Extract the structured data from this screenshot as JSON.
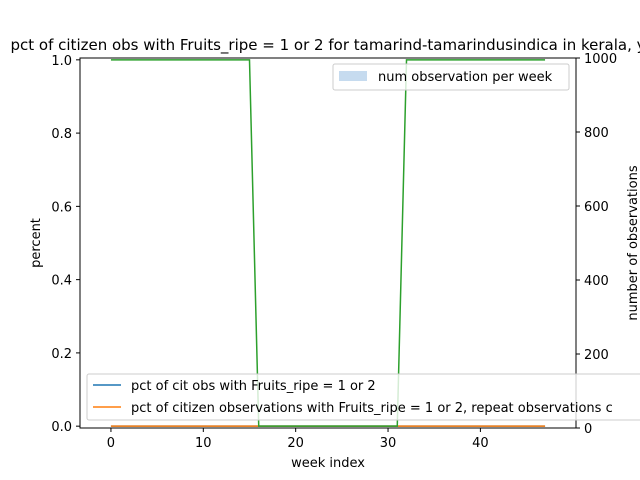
{
  "chart_data": {
    "type": "line",
    "title": "pct of citizen obs with Fruits_ripe = 1 or 2 for tamarind-tamarindusindica in kerala, y",
    "xlabel": "week index",
    "ylabel": "percent",
    "ylabel_right": "number of observations",
    "xlim": [
      -3.35,
      50.35
    ],
    "ylim": [
      -0.005,
      1.005
    ],
    "ylim_right": [
      0,
      1000
    ],
    "x_ticks": [
      0,
      10,
      20,
      30,
      40
    ],
    "y_ticks": [
      0.0,
      0.2,
      0.4,
      0.6,
      0.8,
      1.0
    ],
    "y_ticks_right": [
      0,
      200,
      400,
      600,
      800,
      1000
    ],
    "x": [
      0,
      1,
      2,
      3,
      4,
      5,
      6,
      7,
      8,
      9,
      10,
      11,
      12,
      13,
      14,
      15,
      16,
      17,
      18,
      19,
      20,
      21,
      22,
      23,
      24,
      25,
      26,
      27,
      28,
      29,
      30,
      31,
      32,
      33,
      34,
      35,
      36,
      37,
      38,
      39,
      40,
      41,
      42,
      43,
      44,
      45,
      46,
      47
    ],
    "series": [
      {
        "name": "pct of cit obs with Fruits_ripe = 1 or 2",
        "color": "#1f77b4",
        "values": [
          0,
          0,
          0,
          0,
          0,
          0,
          0,
          0,
          0,
          0,
          0,
          0,
          0,
          0,
          0,
          0,
          0,
          0,
          0,
          0,
          0,
          0,
          0,
          0,
          0,
          0,
          0,
          0,
          0,
          0,
          0,
          0,
          0,
          0,
          0,
          0,
          0,
          0,
          0,
          0,
          0,
          0,
          0,
          0,
          0,
          0,
          0,
          0
        ]
      },
      {
        "name": "pct of citizen observations with Fruits_ripe = 1 or 2, repeat observations c",
        "color": "#ff7f0e",
        "values": [
          0,
          0,
          0,
          0,
          0,
          0,
          0,
          0,
          0,
          0,
          0,
          0,
          0,
          0,
          0,
          0,
          0,
          0,
          0,
          0,
          0,
          0,
          0,
          0,
          0,
          0,
          0,
          0,
          0,
          0,
          0,
          0,
          0,
          0,
          0,
          0,
          0,
          0,
          0,
          0,
          0,
          0,
          0,
          0,
          0,
          0,
          0,
          0
        ]
      },
      {
        "color": "#2ca02c",
        "values": [
          1,
          1,
          1,
          1,
          1,
          1,
          1,
          1,
          1,
          1,
          1,
          1,
          1,
          1,
          1,
          1,
          0,
          0,
          0,
          0,
          0,
          0,
          0,
          0,
          0,
          0,
          0,
          0,
          0,
          0,
          0,
          0,
          1,
          1,
          1,
          1,
          1,
          1,
          1,
          1,
          1,
          1,
          1,
          1,
          1,
          1,
          1,
          1
        ]
      }
    ],
    "bar_series": {
      "name": "num observation per week",
      "color": "#c6dbef",
      "values": [
        0,
        0,
        0,
        0,
        0,
        0,
        0,
        0,
        0,
        0,
        0,
        0,
        0,
        0,
        0,
        0,
        0,
        0,
        0,
        0,
        0,
        0,
        0,
        0,
        0,
        0,
        0,
        0,
        0,
        0,
        0,
        0,
        0,
        0,
        0,
        0,
        0,
        0,
        0,
        0,
        0,
        0,
        0,
        0,
        0,
        0,
        0,
        0
      ]
    },
    "legend_upper": "top-right",
    "legend_lower": "bottom-left",
    "grid": false
  }
}
